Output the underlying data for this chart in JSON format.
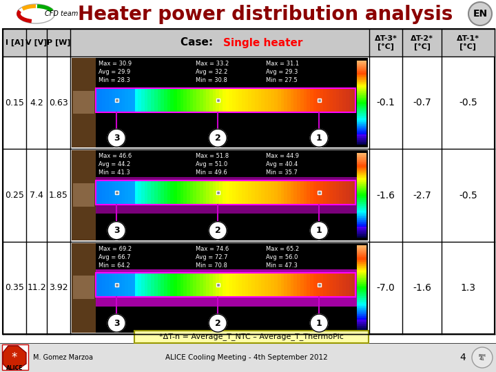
{
  "title": "Heater power distribution analysis",
  "rows": [
    {
      "I": "0.15",
      "V": "4.2",
      "P": "0.63",
      "dt3": "-0.1",
      "dt2": "-0.7",
      "dt1": "-0.5",
      "img_data": [
        {
          "label": "3",
          "max": "Max = 30.9",
          "avg": "Avg = 29.9",
          "min": "Min = 28.3"
        },
        {
          "label": "2",
          "max": "Max = 33.2",
          "avg": "Avg = 32.2",
          "min": "Min = 30.8"
        },
        {
          "label": "1",
          "max": "Max = 31.1",
          "avg": "Avg = 29.3",
          "min": "Min = 27.5"
        }
      ]
    },
    {
      "I": "0.25",
      "V": "7.4",
      "P": "1.85",
      "dt3": "-1.6",
      "dt2": "-2.7",
      "dt1": "-0.5",
      "img_data": [
        {
          "label": "3",
          "max": "Max = 46.6",
          "avg": "Avg = 44.2",
          "min": "Min = 41.3"
        },
        {
          "label": "2",
          "max": "Max = 51.8",
          "avg": "Avg = 51.0",
          "min": "Min = 49.6"
        },
        {
          "label": "1",
          "max": "Max = 44.9",
          "avg": "Avg = 40.4",
          "min": "Min = 35.7"
        }
      ]
    },
    {
      "I": "0.35",
      "V": "11.2",
      "P": "3.92",
      "dt3": "-7.0",
      "dt2": "-1.6",
      "dt1": "1.3",
      "img_data": [
        {
          "label": "3",
          "max": "Max = 69.2",
          "avg": "Avg = 66.7",
          "min": "Min = 64.2"
        },
        {
          "label": "2",
          "max": "Max = 74.6",
          "avg": "Avg = 72.7",
          "min": "Min = 70.8"
        },
        {
          "label": "1",
          "max": "Max = 65.2",
          "avg": "Avg = 56.0",
          "min": "Min = 47.3"
        }
      ]
    }
  ],
  "footer_note": "*ΔT-n = Average_T_NTC – Average_T_ThermoPic",
  "author": "M. Gomez Marzoa",
  "event": "ALICE Cooling Meeting - 4th September 2012",
  "page": "4"
}
